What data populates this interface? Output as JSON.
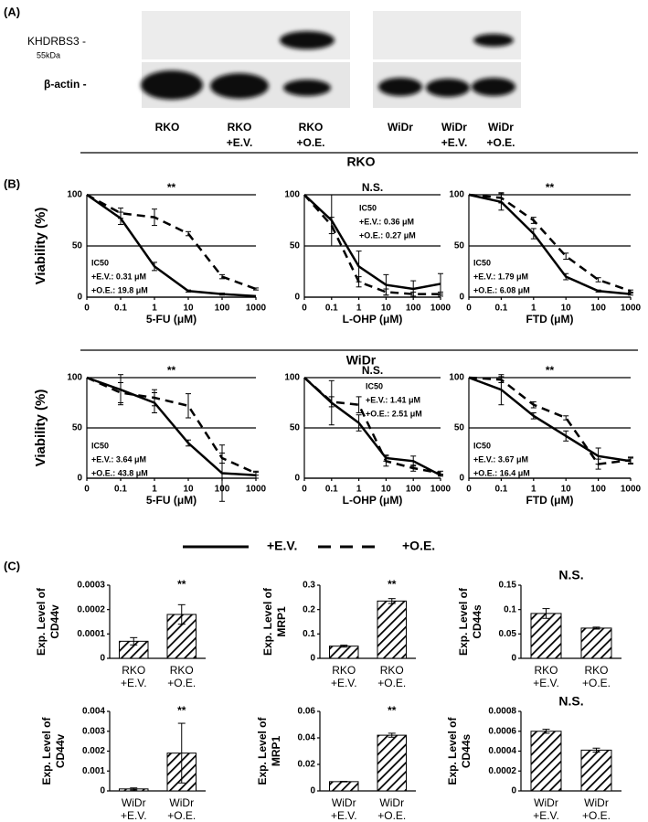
{
  "panel_labels": [
    "(A)",
    "(B)",
    "(C)"
  ],
  "blot": {
    "protein_label": "KHDRBS3 -",
    "size_label": "55kDa",
    "control_label": "β-actin -",
    "lanes": [
      [
        "RKO"
      ],
      [
        "RKO",
        "+E.V."
      ],
      [
        "RKO",
        "+O.E."
      ],
      [
        "WiDr"
      ],
      [
        "WiDr",
        "+E.V."
      ],
      [
        "WiDr",
        "+O.E."
      ]
    ]
  },
  "group_headers": [
    "RKO",
    "WiDr"
  ],
  "chart_data": [
    {
      "type": "line",
      "ylabel": "Viability (%)",
      "xlabel": "5-FU (μM)",
      "significance": "**",
      "annotations": [
        "IC50",
        "+E.V.: 0.31 μM",
        "+O.E.: 19.8 μM"
      ],
      "categories": [
        "0",
        "0.1",
        "1",
        "10",
        "100",
        "1000"
      ],
      "ylim": [
        0,
        100
      ],
      "yticks": [
        0,
        50,
        100
      ],
      "grid": true,
      "series": [
        {
          "name": "+E.V.",
          "color": "#000000",
          "line_style": "solid",
          "values": [
            100,
            77,
            30,
            6,
            3,
            1
          ],
          "errors": [
            0,
            6,
            4,
            1,
            1,
            0
          ]
        },
        {
          "name": "+O.E.",
          "color": "#000000",
          "line_style": "dashed",
          "values": [
            100,
            82,
            78,
            62,
            20,
            8
          ],
          "errors": [
            0,
            5,
            8,
            2,
            2,
            1
          ]
        }
      ]
    },
    {
      "type": "line",
      "xlabel": "L-OHP (μM)",
      "significance": "N.S.",
      "annotations": [
        "IC50",
        "+E.V.: 0.36 μM",
        "+O.E.: 0.27 μM"
      ],
      "categories": [
        "0",
        "0.1",
        "1",
        "10",
        "100",
        "1000"
      ],
      "ylim": [
        0,
        100
      ],
      "yticks": [
        0,
        50,
        100
      ],
      "grid": true,
      "series": [
        {
          "name": "+E.V.",
          "color": "#000000",
          "line_style": "solid",
          "values": [
            100,
            75,
            30,
            12,
            8,
            13
          ],
          "errors": [
            0,
            25,
            15,
            10,
            8,
            10
          ]
        },
        {
          "name": "+O.E.",
          "color": "#000000",
          "line_style": "dashed",
          "values": [
            100,
            70,
            15,
            5,
            3,
            3
          ],
          "errors": [
            0,
            8,
            5,
            3,
            2,
            2
          ]
        }
      ]
    },
    {
      "type": "line",
      "xlabel": "FTD (μM)",
      "significance": "**",
      "annotations": [
        "IC50",
        "+E.V.: 1.79 μM",
        "+O.E.: 6.08 μM"
      ],
      "categories": [
        "0",
        "0.1",
        "1",
        "10",
        "100",
        "1000"
      ],
      "ylim": [
        0,
        100
      ],
      "yticks": [
        0,
        50,
        100
      ],
      "grid": true,
      "series": [
        {
          "name": "+E.V.",
          "color": "#000000",
          "line_style": "solid",
          "values": [
            100,
            93,
            62,
            20,
            6,
            3
          ],
          "errors": [
            0,
            8,
            5,
            3,
            1,
            1
          ]
        },
        {
          "name": "+O.E.",
          "color": "#000000",
          "line_style": "dashed",
          "values": [
            100,
            97,
            75,
            40,
            17,
            6
          ],
          "errors": [
            0,
            5,
            3,
            3,
            2,
            1
          ]
        }
      ]
    },
    {
      "type": "line",
      "ylabel": "Viability (%)",
      "xlabel": "5-FU (μM)",
      "significance": "**",
      "annotations": [
        "IC50",
        "+E.V.: 3.64 μM",
        "+O.E.: 43.8 μM"
      ],
      "categories": [
        "0",
        "0.1",
        "1",
        "10",
        "100",
        "1000"
      ],
      "ylim": [
        0,
        100
      ],
      "yticks": [
        0,
        50,
        100
      ],
      "grid": true,
      "series": [
        {
          "name": "+E.V.",
          "color": "#000000",
          "line_style": "solid",
          "values": [
            100,
            88,
            75,
            35,
            5,
            3
          ],
          "errors": [
            0,
            15,
            10,
            3,
            28,
            3
          ]
        },
        {
          "name": "+O.E.",
          "color": "#000000",
          "line_style": "dashed",
          "values": [
            100,
            85,
            80,
            72,
            20,
            5
          ],
          "errors": [
            0,
            10,
            8,
            12,
            5,
            2
          ]
        }
      ]
    },
    {
      "type": "line",
      "xlabel": "L-OHP (μM)",
      "significance": "N.S.",
      "annotations": [
        "IC50",
        "+E.V.: 1.41 μM",
        "+O.E.: 2.51 μM"
      ],
      "categories": [
        "0",
        "0.1",
        "1",
        "10",
        "100",
        "1000"
      ],
      "ylim": [
        0,
        100
      ],
      "yticks": [
        0,
        50,
        100
      ],
      "grid": true,
      "series": [
        {
          "name": "+E.V.",
          "color": "#000000",
          "line_style": "solid",
          "values": [
            100,
            75,
            55,
            20,
            17,
            3
          ],
          "errors": [
            0,
            22,
            8,
            3,
            5,
            1
          ]
        },
        {
          "name": "+O.E.",
          "color": "#000000",
          "line_style": "dashed",
          "values": [
            100,
            76,
            73,
            17,
            10,
            5
          ],
          "errors": [
            0,
            5,
            8,
            5,
            3,
            2
          ]
        }
      ]
    },
    {
      "type": "line",
      "xlabel": "FTD (μM)",
      "significance": "**",
      "annotations": [
        "IC50",
        "+E.V.: 3.67 μM",
        "+O.E.: 16.4 μM"
      ],
      "categories": [
        "0",
        "0.1",
        "1",
        "10",
        "100",
        "1000"
      ],
      "ylim": [
        0,
        100
      ],
      "yticks": [
        0,
        50,
        100
      ],
      "grid": true,
      "series": [
        {
          "name": "+E.V.",
          "color": "#000000",
          "line_style": "solid",
          "values": [
            100,
            88,
            62,
            42,
            22,
            17
          ],
          "errors": [
            0,
            15,
            3,
            5,
            8,
            3
          ]
        },
        {
          "name": "+O.E.",
          "color": "#000000",
          "line_style": "dashed",
          "values": [
            100,
            98,
            73,
            60,
            14,
            18
          ],
          "errors": [
            0,
            3,
            3,
            2,
            5,
            3
          ]
        }
      ]
    },
    {
      "type": "bar",
      "ylabel": [
        "Exp. Level of",
        "CD44v"
      ],
      "significance": "**",
      "color": "#000000",
      "categories": [
        [
          "RKO",
          "+E.V."
        ],
        [
          "RKO",
          "+O.E."
        ]
      ],
      "values": [
        7e-05,
        0.00018
      ],
      "errors": [
        1.5e-05,
        4e-05
      ],
      "ylim": [
        0,
        0.0003
      ],
      "yticks": [
        0,
        0.0001,
        0.0002,
        0.0003
      ]
    },
    {
      "type": "bar",
      "ylabel": [
        "Exp. Level of",
        "MRP1"
      ],
      "significance": "**",
      "color": "#000000",
      "categories": [
        [
          "RKO",
          "+E.V."
        ],
        [
          "RKO",
          "+O.E."
        ]
      ],
      "values": [
        0.05,
        0.235
      ],
      "errors": [
        0.004,
        0.01
      ],
      "ylim": [
        0,
        0.3
      ],
      "yticks": [
        0,
        0.1,
        0.2,
        0.3
      ]
    },
    {
      "type": "bar",
      "ylabel": [
        "Exp. Level of",
        "CD44s"
      ],
      "significance": "N.S.",
      "color": "#000000",
      "categories": [
        [
          "RKO",
          "+E.V."
        ],
        [
          "RKO",
          "+O.E."
        ]
      ],
      "values": [
        0.092,
        0.062
      ],
      "errors": [
        0.01,
        0.002
      ],
      "ylim": [
        0,
        0.15
      ],
      "yticks": [
        0,
        0.05,
        0.1,
        0.15
      ]
    },
    {
      "type": "bar",
      "ylabel": [
        "Exp. Level of",
        "CD44v"
      ],
      "significance": "**",
      "color": "#000000",
      "categories": [
        [
          "WiDr",
          "+E.V."
        ],
        [
          "WiDr",
          "+O.E."
        ]
      ],
      "values": [
        0.0001,
        0.0019
      ],
      "errors": [
        5e-05,
        0.0015
      ],
      "ylim": [
        0,
        0.004
      ],
      "yticks": [
        0,
        0.001,
        0.002,
        0.003,
        0.004
      ]
    },
    {
      "type": "bar",
      "ylabel": [
        "Exp. Level of",
        "MRP1"
      ],
      "significance": "**",
      "color": "#000000",
      "categories": [
        [
          "WiDr",
          "+E.V."
        ],
        [
          "WiDr",
          "+O.E."
        ]
      ],
      "values": [
        0.007,
        0.042
      ],
      "errors": [
        0.0002,
        0.0015
      ],
      "ylim": [
        0,
        0.06
      ],
      "yticks": [
        0,
        0.02,
        0.04,
        0.06
      ]
    },
    {
      "type": "bar",
      "ylabel": [
        "Exp. Level of",
        "CD44s"
      ],
      "significance": "N.S.",
      "color": "#000000",
      "categories": [
        [
          "WiDr",
          "+E.V."
        ],
        [
          "WiDr",
          "+O.E."
        ]
      ],
      "values": [
        0.0006,
        0.00041
      ],
      "errors": [
        2e-05,
        2e-05
      ],
      "ylim": [
        0,
        0.0008
      ],
      "yticks": [
        0,
        0.0002,
        0.0004,
        0.0006,
        0.0008
      ]
    }
  ]
}
